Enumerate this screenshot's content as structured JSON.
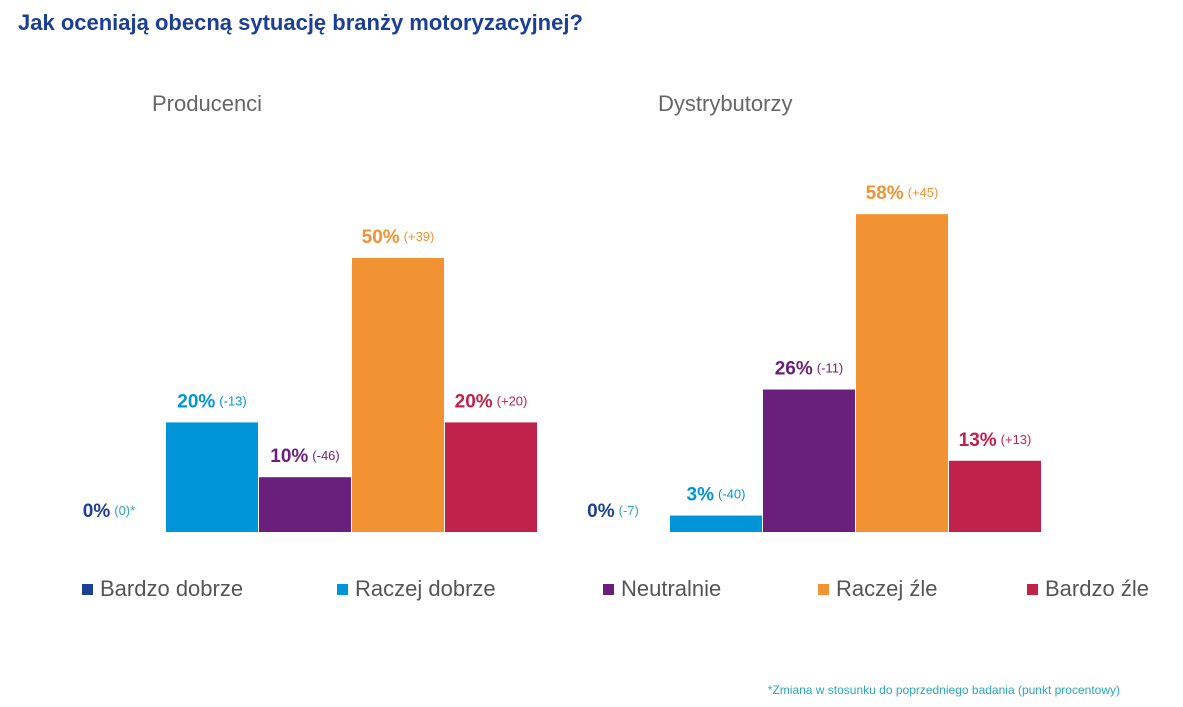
{
  "title": "Jak oceniają obecną sytuację branży motoryzacyjnej?",
  "footnote": "*Zmiana w stosunku do poprzedniego badania (punkt procentowy)",
  "chart_data": [
    {
      "type": "bar",
      "title": "Producenci",
      "categories": [
        "Bardzo dobrze",
        "Raczej dobrze",
        "Neutralnie",
        "Raczej źle",
        "Bardzo źle"
      ],
      "colors": [
        "#1c3f94",
        "#0095d9",
        "#6b1f7c",
        "#f39232",
        "#c1224b"
      ],
      "values": [
        0,
        20,
        10,
        50,
        20
      ],
      "value_labels": [
        "0%",
        "20%",
        "10%",
        "50%",
        "20%"
      ],
      "changes": [
        0,
        -13,
        -46,
        39,
        20
      ],
      "change_labels": [
        "(0)*",
        "(-13)",
        "(-46)",
        "(+39)",
        "(+20)"
      ]
    },
    {
      "type": "bar",
      "title": "Dystrybutorzy",
      "categories": [
        "Bardzo dobrze",
        "Raczej dobrze",
        "Neutralnie",
        "Raczej źle",
        "Bardzo źle"
      ],
      "colors": [
        "#1c3f94",
        "#0095d9",
        "#6b1f7c",
        "#f39232",
        "#c1224b"
      ],
      "values": [
        0,
        3,
        26,
        58,
        13
      ],
      "value_labels": [
        "0%",
        "3%",
        "26%",
        "58%",
        "13%"
      ],
      "changes": [
        -7,
        -40,
        -11,
        45,
        13
      ],
      "change_labels": [
        "(-7)",
        "(-40)",
        "(-11)",
        "(+45)",
        "(+13)"
      ]
    }
  ]
}
